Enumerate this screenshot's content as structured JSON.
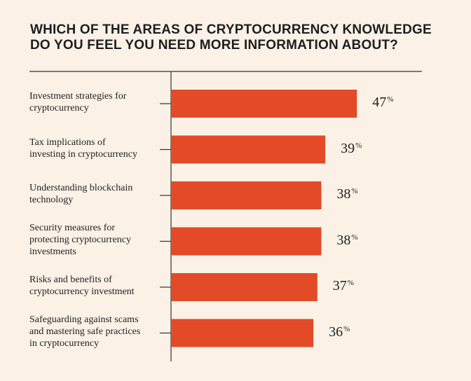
{
  "chart_data": {
    "type": "bar",
    "orientation": "horizontal",
    "title_lines": [
      "WHICH OF THE AREAS OF CRYPTOCURRENCY KNOWLEDGE",
      "DO YOU FEEL YOU NEED MORE INFORMATION ABOUT?"
    ],
    "categories": [
      [
        "Investment strategies for",
        "cryptocurrency"
      ],
      [
        "Tax implications of",
        "investing in cryptocurrency"
      ],
      [
        "Understanding blockchain",
        "technology"
      ],
      [
        "Security measures for",
        "protecting cryptocurrency",
        "investments"
      ],
      [
        "Risks and benefits of",
        "cryptocurrency investment"
      ],
      [
        "Safeguarding against scams",
        "and mastering safe practices",
        "in cryptocurrency"
      ]
    ],
    "values": [
      47,
      39,
      38,
      38,
      37,
      36
    ],
    "value_suffix": "%",
    "bar_color": "#e34a27",
    "axis_color": "#333333",
    "background": "#fbf1e6",
    "xlim": [
      0,
      56
    ]
  }
}
